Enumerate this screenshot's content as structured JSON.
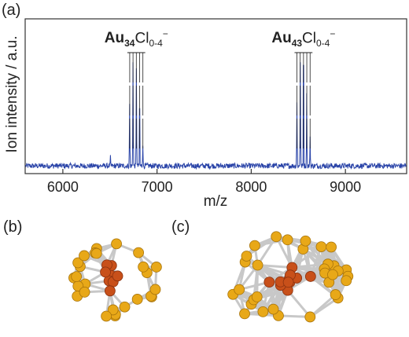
{
  "panels": {
    "a": "(a)",
    "b": "(b)",
    "c": "(c)"
  },
  "chart_data": {
    "type": "line",
    "title": "",
    "xlabel": "m/z",
    "ylabel": "Ion intensity / a.u.",
    "xlim": [
      5600,
      9650
    ],
    "ylim": [
      0,
      1
    ],
    "xticks": [
      6000,
      7000,
      8000,
      9000
    ],
    "grid": false,
    "line_color": "#2a44a8",
    "baseline": 0.05,
    "spikes": [
      {
        "x": 6505,
        "y": 0.12
      },
      {
        "x": 6710,
        "y": 0.45
      },
      {
        "x": 6745,
        "y": 0.72
      },
      {
        "x": 6780,
        "y": 0.68
      },
      {
        "x": 6815,
        "y": 0.42
      },
      {
        "x": 6850,
        "y": 0.18
      },
      {
        "x": 8485,
        "y": 0.46
      },
      {
        "x": 8520,
        "y": 0.72
      },
      {
        "x": 8555,
        "y": 0.7
      },
      {
        "x": 8590,
        "y": 0.52
      },
      {
        "x": 8625,
        "y": 0.24
      }
    ],
    "annotations": [
      {
        "x_center": 6780,
        "peaks": [
          6710,
          6745,
          6780,
          6815,
          6850
        ],
        "main": "Au",
        "main_sub": "34",
        "rest": "Cl",
        "rest_sub": "0-4",
        "charge": "−"
      },
      {
        "x_center": 8555,
        "peaks": [
          8485,
          8520,
          8555,
          8590,
          8625
        ],
        "main": "Au",
        "main_sub": "43",
        "rest": "Cl",
        "rest_sub": "0-4",
        "charge": "−"
      }
    ]
  },
  "clusters": {
    "b": {
      "gold_color": "#e8a818",
      "core_color": "#c8501a",
      "bond_color": "#c8c8c8"
    },
    "c": {
      "gold_color": "#e8a818",
      "core_color": "#c8501a",
      "bond_color": "#c8c8c8"
    }
  }
}
